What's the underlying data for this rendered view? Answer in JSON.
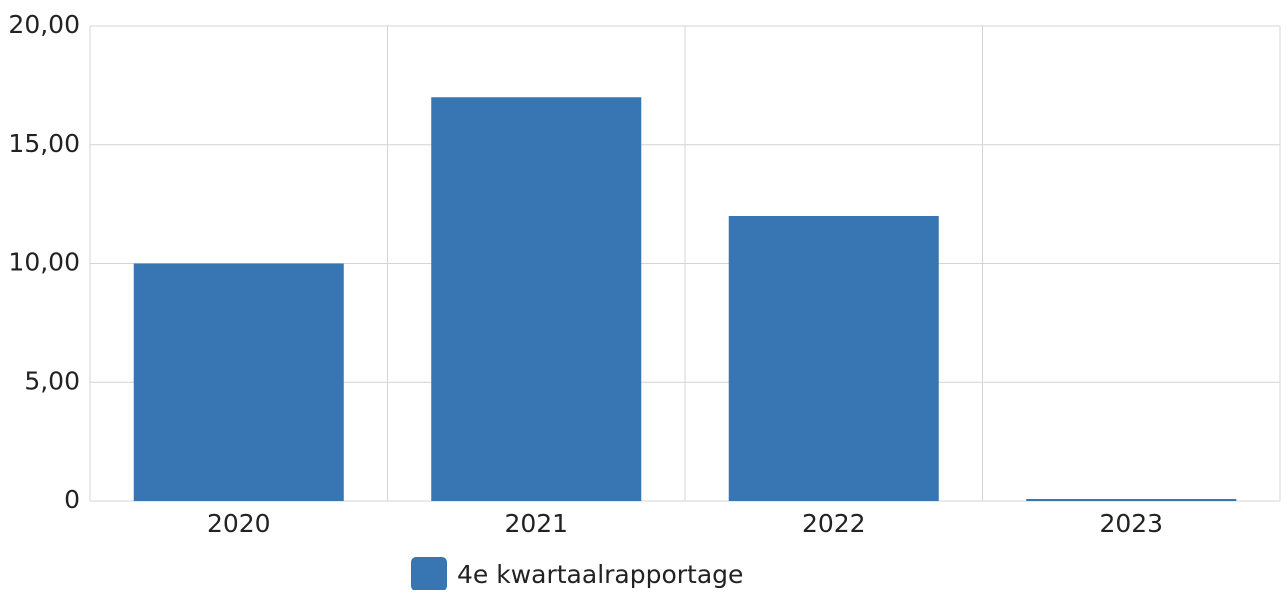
{
  "chart_data": {
    "type": "bar",
    "categories": [
      "2020",
      "2021",
      "2022",
      "2023"
    ],
    "series": [
      {
        "name": "4e kwartaalrapportage",
        "color": "#3776b3",
        "values": [
          10,
          17,
          12,
          0
        ]
      }
    ],
    "ylim": [
      0,
      20
    ],
    "yticks": [
      0,
      {
        "value": 5,
        "label": "5,00"
      },
      {
        "value": 10,
        "label": "10,00"
      },
      {
        "value": 15,
        "label": "15,00"
      },
      {
        "value": 20,
        "label": "20,00"
      }
    ],
    "grid": true,
    "legend": "bottom"
  }
}
